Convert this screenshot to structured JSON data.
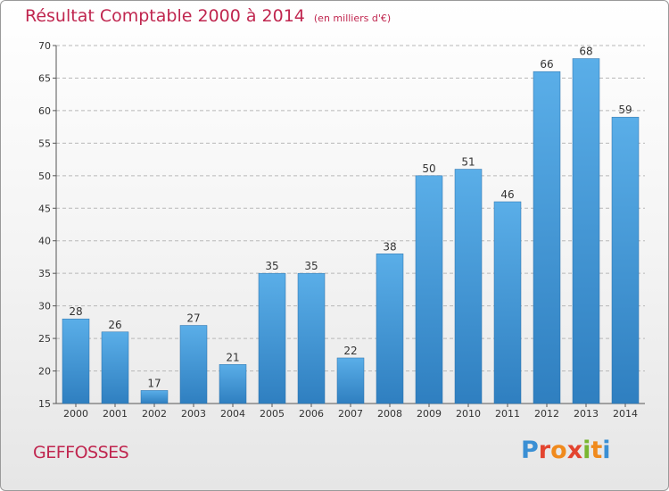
{
  "header": {
    "title": "Résultat Comptable 2000 à 2014",
    "subtitle": "(en milliers d'€)"
  },
  "footer": {
    "commune": "GEFFOSSES",
    "logo_text": "Proxiti"
  },
  "colors": {
    "title": "#c0264f",
    "bar_top": "#5aaee8",
    "bar_bottom": "#2f7fc0",
    "grid": "#b8b8b8"
  },
  "chart_data": {
    "type": "bar",
    "title": "Résultat Comptable 2000 à 2014",
    "subtitle": "(en milliers d'€)",
    "xlabel": "",
    "ylabel": "",
    "categories": [
      "2000",
      "2001",
      "2002",
      "2003",
      "2004",
      "2005",
      "2006",
      "2007",
      "2008",
      "2009",
      "2010",
      "2011",
      "2012",
      "2013",
      "2014"
    ],
    "values": [
      28,
      26,
      17,
      27,
      21,
      35,
      35,
      22,
      38,
      50,
      51,
      46,
      66,
      68,
      59
    ],
    "ylim": [
      15,
      70
    ],
    "yticks": [
      15,
      20,
      25,
      30,
      35,
      40,
      45,
      50,
      55,
      60,
      65,
      70
    ],
    "grid": true,
    "data_labels": true
  }
}
